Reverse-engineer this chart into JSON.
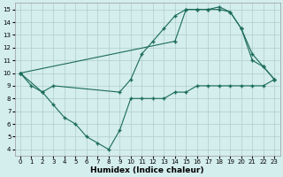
{
  "xlabel": "Humidex (Indice chaleur)",
  "bg_color": "#d4eded",
  "grid_color": "#b0cccc",
  "line_color": "#1a6b5a",
  "xlim": [
    -0.5,
    23.5
  ],
  "ylim": [
    3.5,
    15.5
  ],
  "xticks": [
    0,
    1,
    2,
    3,
    4,
    5,
    6,
    7,
    8,
    9,
    10,
    11,
    12,
    13,
    14,
    15,
    16,
    17,
    18,
    19,
    20,
    21,
    22,
    23
  ],
  "yticks": [
    4,
    5,
    6,
    7,
    8,
    9,
    10,
    11,
    12,
    13,
    14,
    15
  ],
  "line1_x": [
    0,
    1,
    2,
    3,
    4,
    5,
    6,
    7,
    8,
    9,
    10,
    11,
    12,
    13,
    14,
    15,
    16,
    17,
    18,
    19,
    20,
    21,
    22,
    23
  ],
  "line1_y": [
    10.0,
    9.0,
    8.5,
    7.5,
    6.5,
    6.0,
    5.0,
    4.5,
    4.0,
    5.5,
    8.0,
    8.0,
    8.0,
    8.0,
    8.5,
    8.5,
    9.0,
    9.0,
    9.0,
    9.0,
    9.0,
    9.0,
    9.0,
    9.5
  ],
  "line2_x": [
    0,
    2,
    3,
    9,
    10,
    11,
    12,
    13,
    14,
    15,
    16,
    17,
    18,
    19,
    20,
    21,
    22,
    23
  ],
  "line2_y": [
    10.0,
    8.5,
    9.0,
    8.5,
    9.5,
    11.5,
    12.5,
    13.5,
    14.5,
    15.0,
    15.0,
    15.0,
    15.0,
    14.8,
    13.5,
    11.0,
    10.5,
    9.5
  ],
  "line3_x": [
    0,
    14,
    15,
    16,
    17,
    18,
    19,
    20,
    21,
    22,
    23
  ],
  "line3_y": [
    10.0,
    12.5,
    15.0,
    15.0,
    15.0,
    15.2,
    14.8,
    13.5,
    11.5,
    10.5,
    9.5
  ]
}
